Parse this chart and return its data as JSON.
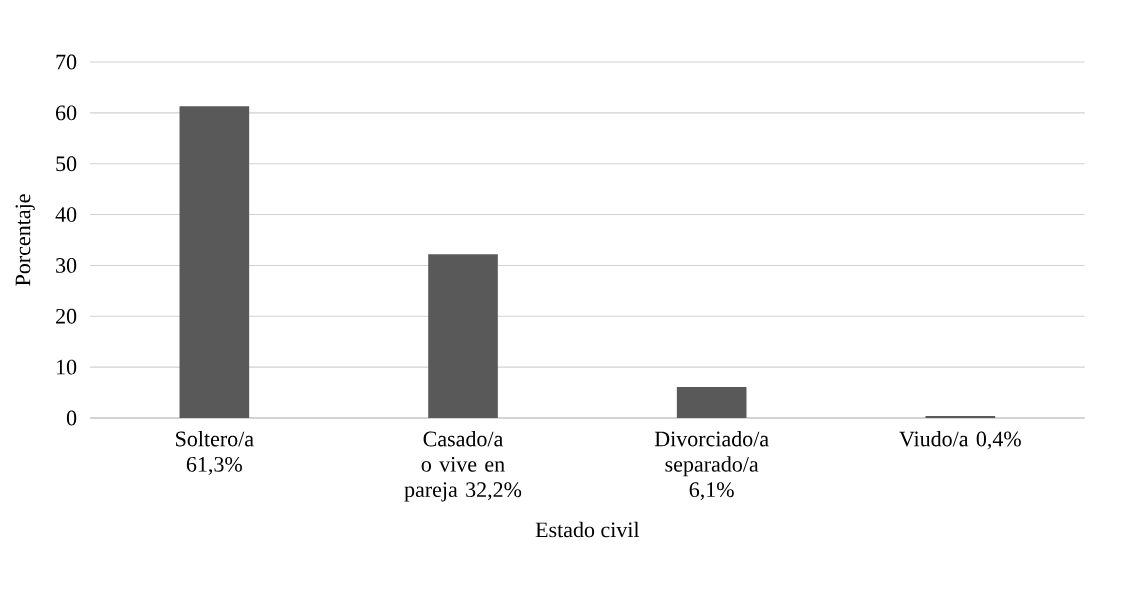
{
  "chart_data": {
    "type": "bar",
    "xlabel": "Estado civil",
    "ylabel": "Porcentaje",
    "categories": [
      "Soltero/a 61,3%",
      "Casado/a o vive en pareja 32,2%",
      "Divorciado/a separado/a 6,1%",
      "Viudo/a 0,4%"
    ],
    "values": [
      61.3,
      32.2,
      6.1,
      0.4
    ],
    "color": "#595959",
    "ylim": [
      0,
      70
    ],
    "yticks": [
      0,
      10,
      20,
      30,
      40,
      50,
      60,
      70
    ],
    "grid": "y"
  }
}
